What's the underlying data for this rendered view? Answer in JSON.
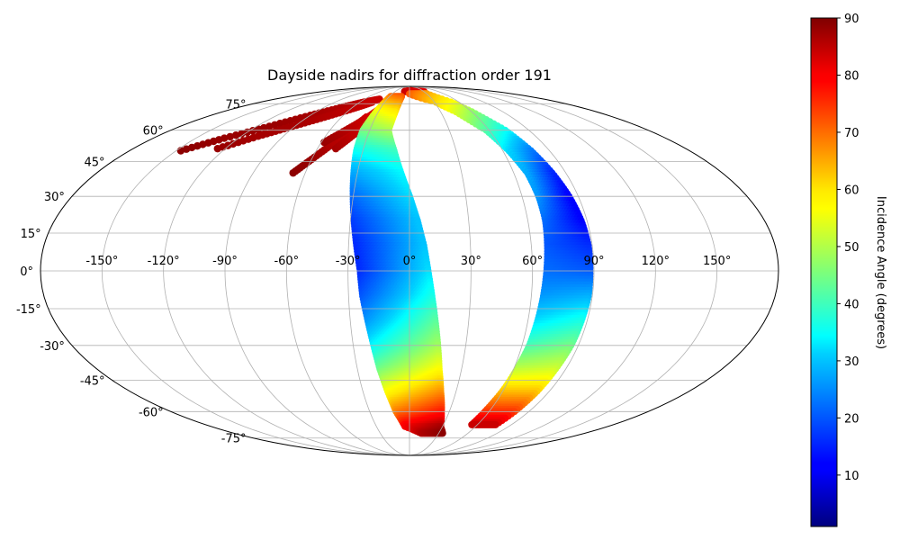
{
  "chart_data": {
    "type": "scatter",
    "projection": "mollweide",
    "title": "Dayside nadirs for diffraction order 191",
    "xlabel": "",
    "ylabel": "",
    "grid": true,
    "longitude_ticks": [
      -150,
      -120,
      -90,
      -60,
      -30,
      0,
      30,
      60,
      90,
      120,
      150
    ],
    "longitude_tick_labels": [
      "-150°",
      "-120°",
      "-90°",
      "-60°",
      "-30°",
      "0°",
      "30°",
      "60°",
      "90°",
      "120°",
      "150°"
    ],
    "latitude_ticks": [
      75,
      60,
      45,
      30,
      15,
      0,
      -15,
      -30,
      -45,
      -60,
      -75
    ],
    "latitude_tick_labels": [
      "75°",
      "60°",
      "45°",
      "30°",
      "15°",
      "0°",
      "-15°",
      "-30°",
      "-45°",
      "-60°",
      "-75°"
    ],
    "colorbar": {
      "label": "Incidence Angle (degrees)",
      "colormap": "jet",
      "range": [
        1,
        90
      ],
      "ticks": [
        10,
        20,
        30,
        40,
        50,
        60,
        70,
        80,
        90
      ],
      "tick_labels": [
        "10",
        "20",
        "30",
        "40",
        "50",
        "60",
        "70",
        "80",
        "90"
      ]
    },
    "series": [
      {
        "tracks": [
          {
            "points": [
              [
                -147,
                50,
                89
              ],
              [
                -130,
                56,
                88
              ],
              [
                -110,
                62,
                88
              ],
              [
                -90,
                68,
                87
              ],
              [
                -70,
                73,
                86
              ],
              [
                -55,
                76,
                85
              ],
              [
                -40,
                78,
                84
              ]
            ]
          },
          {
            "points": [
              [
                -125,
                51,
                88
              ],
              [
                -108,
                57,
                87
              ],
              [
                -92,
                62,
                87
              ],
              [
                -75,
                67,
                86
              ],
              [
                -58,
                72,
                85
              ],
              [
                -45,
                76,
                84
              ]
            ]
          },
          {
            "points": [
              [
                -67,
                40,
                89
              ],
              [
                -60,
                46,
                88
              ],
              [
                -52,
                53,
                86
              ],
              [
                -45,
                60,
                85
              ],
              [
                -38,
                67,
                83
              ]
            ]
          },
          {
            "points": [
              [
                -58,
                54,
                88
              ],
              [
                -48,
                60,
                86
              ],
              [
                -38,
                66,
                84
              ],
              [
                -30,
                72,
                82
              ]
            ]
          },
          {
            "points": [
              [
                -48,
                51,
                87
              ],
              [
                -40,
                58,
                85
              ],
              [
                -32,
                65,
                83
              ]
            ]
          },
          {
            "points": [
              [
                -10,
                84,
                84
              ],
              [
                10,
                85,
                83
              ],
              [
                30,
                84,
                82
              ]
            ]
          }
        ]
      },
      {
        "band": "central",
        "rows": [
          {
            "lat": 80,
            "lon_left": -28,
            "lon_right": -12,
            "inc_left": 70,
            "inc_right": 72
          },
          {
            "lat": 70,
            "lon_left": -32,
            "lon_right": -14,
            "inc_left": 56,
            "inc_right": 60
          },
          {
            "lat": 60,
            "lon_left": -35,
            "lon_right": -16,
            "inc_left": 46,
            "inc_right": 50
          },
          {
            "lat": 50,
            "lon_left": -34,
            "lon_right": -10,
            "inc_left": 36,
            "inc_right": 40
          },
          {
            "lat": 40,
            "lon_left": -32,
            "lon_right": -5,
            "inc_left": 28,
            "inc_right": 34
          },
          {
            "lat": 30,
            "lon_left": -30,
            "lon_right": 0,
            "inc_left": 22,
            "inc_right": 32
          },
          {
            "lat": 20,
            "lon_left": -28,
            "lon_right": 4,
            "inc_left": 18,
            "inc_right": 30
          },
          {
            "lat": 10,
            "lon_left": -26,
            "lon_right": 7,
            "inc_left": 16,
            "inc_right": 30
          },
          {
            "lat": 0,
            "lon_left": -24,
            "lon_right": 9,
            "inc_left": 16,
            "inc_right": 32
          },
          {
            "lat": -10,
            "lon_left": -23,
            "lon_right": 11,
            "inc_left": 20,
            "inc_right": 36
          },
          {
            "lat": -20,
            "lon_left": -21,
            "lon_right": 13,
            "inc_left": 26,
            "inc_right": 42
          },
          {
            "lat": -30,
            "lon_left": -19,
            "lon_right": 15,
            "inc_left": 34,
            "inc_right": 48
          },
          {
            "lat": -40,
            "lon_left": -17,
            "lon_right": 17,
            "inc_left": 44,
            "inc_right": 56
          },
          {
            "lat": -50,
            "lon_left": -14,
            "lon_right": 20,
            "inc_left": 56,
            "inc_right": 66
          },
          {
            "lat": -60,
            "lon_left": -10,
            "lon_right": 24,
            "inc_left": 68,
            "inc_right": 76
          },
          {
            "lat": -68,
            "lon_left": -4,
            "lon_right": 28,
            "inc_left": 80,
            "inc_right": 86
          },
          {
            "lat": -72,
            "lon_left": 12,
            "lon_right": 34,
            "inc_left": 86,
            "inc_right": 89
          }
        ]
      },
      {
        "band": "eastern",
        "rows": [
          {
            "lat": 82,
            "lon_left": 0,
            "lon_right": 30,
            "inc_left": 72,
            "inc_right": 66
          },
          {
            "lat": 76,
            "lon_left": 32,
            "lon_right": 50,
            "inc_left": 62,
            "inc_right": 58
          },
          {
            "lat": 70,
            "lon_left": 45,
            "lon_right": 60,
            "inc_left": 54,
            "inc_right": 48
          },
          {
            "lat": 60,
            "lon_left": 58,
            "lon_right": 72,
            "inc_left": 42,
            "inc_right": 36
          },
          {
            "lat": 50,
            "lon_left": 64,
            "lon_right": 78,
            "inc_left": 32,
            "inc_right": 24
          },
          {
            "lat": 40,
            "lon_left": 68,
            "lon_right": 82,
            "inc_left": 28,
            "inc_right": 16
          },
          {
            "lat": 30,
            "lon_left": 69,
            "lon_right": 85,
            "inc_left": 26,
            "inc_right": 12
          },
          {
            "lat": 20,
            "lon_left": 69,
            "lon_right": 87,
            "inc_left": 22,
            "inc_right": 12
          },
          {
            "lat": 10,
            "lon_left": 68,
            "lon_right": 88,
            "inc_left": 20,
            "inc_right": 16
          },
          {
            "lat": 0,
            "lon_left": 67,
            "lon_right": 88,
            "inc_left": 22,
            "inc_right": 20
          },
          {
            "lat": -10,
            "lon_left": 66,
            "lon_right": 88,
            "inc_left": 26,
            "inc_right": 28
          },
          {
            "lat": -20,
            "lon_left": 65,
            "lon_right": 87,
            "inc_left": 32,
            "inc_right": 36
          },
          {
            "lat": -30,
            "lon_left": 64,
            "lon_right": 86,
            "inc_left": 40,
            "inc_right": 44
          },
          {
            "lat": -40,
            "lon_left": 62,
            "lon_right": 84,
            "inc_left": 50,
            "inc_right": 52
          },
          {
            "lat": -50,
            "lon_left": 60,
            "lon_right": 82,
            "inc_left": 62,
            "inc_right": 62
          },
          {
            "lat": -60,
            "lon_left": 57,
            "lon_right": 79,
            "inc_left": 74,
            "inc_right": 74
          },
          {
            "lat": -67,
            "lon_left": 55,
            "lon_right": 76,
            "inc_left": 84,
            "inc_right": 84
          }
        ]
      }
    ]
  }
}
